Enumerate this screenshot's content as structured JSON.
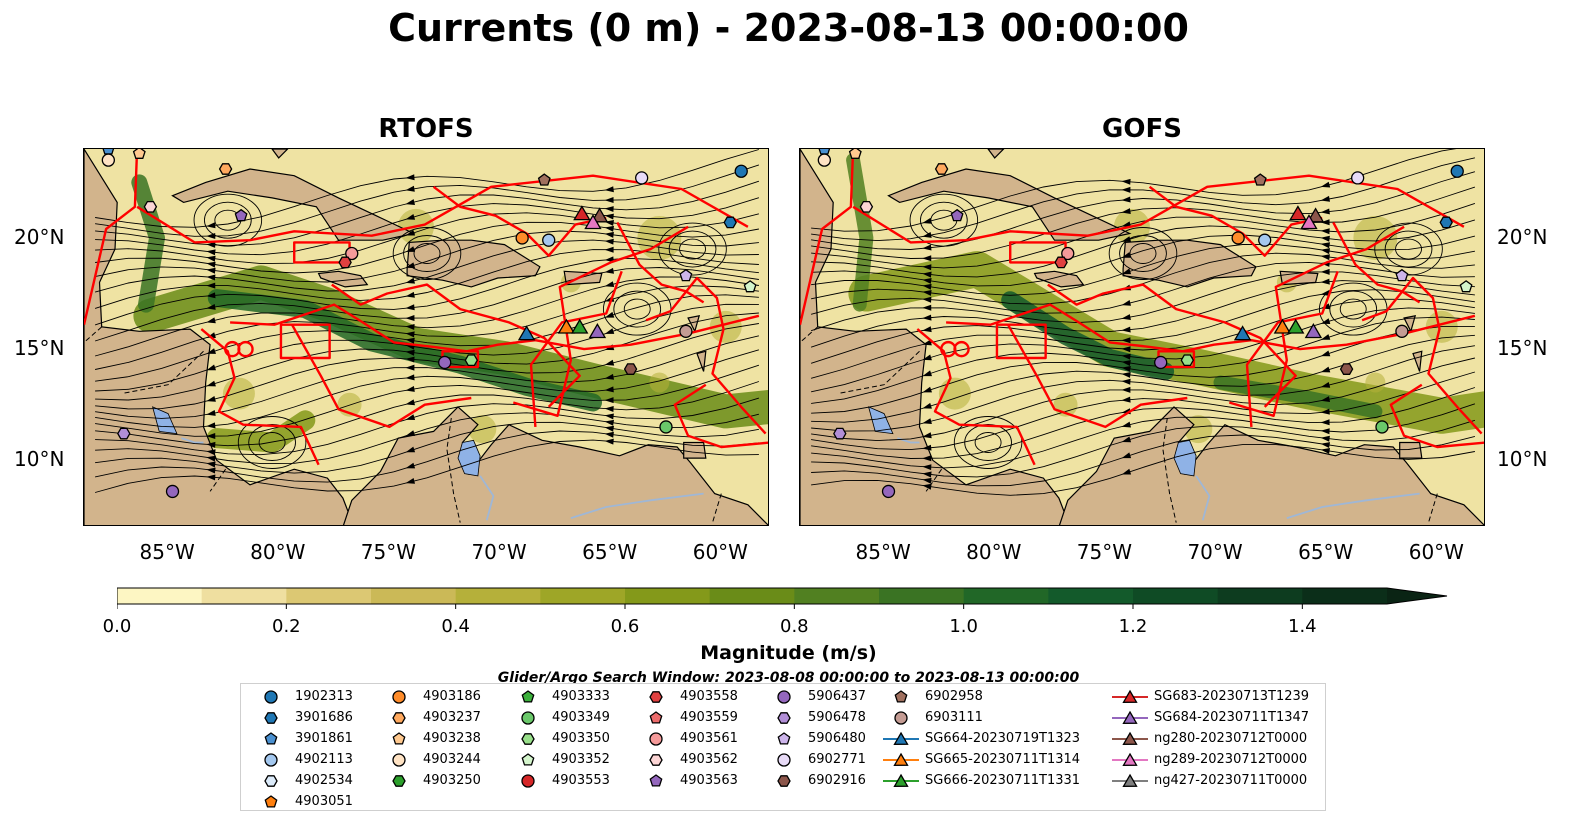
{
  "title": "Currents (0 m) - 2023-08-13 00:00:00",
  "panels": [
    {
      "title": "RTOFS"
    },
    {
      "title": "GOFS"
    }
  ],
  "map": {
    "lon_ticks": [
      "85°W",
      "80°W",
      "75°W",
      "70°W",
      "65°W",
      "60°W"
    ],
    "lat_ticks": [
      "20°N",
      "15°N",
      "10°N"
    ],
    "lon_range": [
      -89,
      -58
    ],
    "lat_range": [
      7,
      24
    ],
    "land_color": "#d2b48c",
    "lake_color": "#8fb2e6",
    "eez_color": "#ff0000"
  },
  "colorbar": {
    "title": "Magnitude (m/s)",
    "tick_labels": [
      "0.0",
      "0.2",
      "0.4",
      "0.6",
      "0.8",
      "1.0",
      "1.2",
      "1.4"
    ],
    "colors": [
      "#fdf6c3",
      "#efdfa0",
      "#dcc873",
      "#cbb957",
      "#b5b03a",
      "#9ea627",
      "#84991a",
      "#6a8c18",
      "#518021",
      "#3a7323",
      "#216727",
      "#135a2b",
      "#0f4b25",
      "#0d3c1f",
      "#0b2e19",
      "#0a2414"
    ],
    "extend": "max"
  },
  "search_window": "Glider/Argo Search Window: 2023-08-08 00:00:00 to 2023-08-13 00:00:00",
  "legend": {
    "columns": [
      [
        {
          "label": "1902313",
          "marker": "circle",
          "color": "#1f77b4"
        },
        {
          "label": "3901686",
          "marker": "hexagon",
          "color": "#1f77b4"
        },
        {
          "label": "3901861",
          "marker": "pentagon",
          "color": "#4a90d0"
        },
        {
          "label": "4902113",
          "marker": "circle",
          "color": "#a4c8ef"
        },
        {
          "label": "4902534",
          "marker": "hexagon",
          "color": "#dcebfa"
        },
        {
          "label": "4903051",
          "marker": "pentagon",
          "color": "#ff7f0e"
        }
      ],
      [
        {
          "label": "4903186",
          "marker": "circle",
          "color": "#ff8c2a"
        },
        {
          "label": "4903237",
          "marker": "hexagon",
          "color": "#ffa95e"
        },
        {
          "label": "4903238",
          "marker": "pentagon",
          "color": "#ffc98f"
        },
        {
          "label": "4903244",
          "marker": "circle",
          "color": "#ffe3c4"
        },
        {
          "label": "4903250",
          "marker": "hexagon",
          "color": "#2ca02c"
        }
      ],
      [
        {
          "label": "4903333",
          "marker": "pentagon",
          "color": "#3cb03c"
        },
        {
          "label": "4903349",
          "marker": "circle",
          "color": "#6ac86a"
        },
        {
          "label": "4903350",
          "marker": "hexagon",
          "color": "#98df8a"
        },
        {
          "label": "4903352",
          "marker": "pentagon",
          "color": "#d4f5cc"
        },
        {
          "label": "4903553",
          "marker": "circle",
          "color": "#d62728"
        }
      ],
      [
        {
          "label": "4903558",
          "marker": "hexagon",
          "color": "#e04040"
        },
        {
          "label": "4903559",
          "marker": "pentagon",
          "color": "#ec6b6b"
        },
        {
          "label": "4903561",
          "marker": "circle",
          "color": "#f59a9a"
        },
        {
          "label": "4903562",
          "marker": "hexagon",
          "color": "#fcd5d5"
        },
        {
          "label": "4903563",
          "marker": "pentagon",
          "color": "#9467bd"
        }
      ],
      [
        {
          "label": "5906437",
          "marker": "circle",
          "color": "#9467bd"
        },
        {
          "label": "5906478",
          "marker": "hexagon",
          "color": "#b18ed6"
        },
        {
          "label": "5906480",
          "marker": "pentagon",
          "color": "#cdb5eb"
        },
        {
          "label": "6902771",
          "marker": "circle",
          "color": "#e8dbf7"
        },
        {
          "label": "6902916",
          "marker": "hexagon",
          "color": "#8c564b"
        }
      ],
      [
        {
          "label": "6902958",
          "marker": "pentagon",
          "color": "#a0705f"
        },
        {
          "label": "6903111",
          "marker": "circle",
          "color": "#c49c94"
        },
        {
          "label": "SG664-20230719T1323",
          "marker": "triangle",
          "color": "#1f77b4",
          "line": true
        },
        {
          "label": "SG665-20230711T1314",
          "marker": "triangle",
          "color": "#ff7f0e",
          "line": true
        },
        {
          "label": "SG666-20230711T1331",
          "marker": "triangle",
          "color": "#2ca02c",
          "line": true
        }
      ],
      [
        {
          "label": "SG683-20230713T1239",
          "marker": "triangle",
          "color": "#d62728",
          "line": true
        },
        {
          "label": "SG684-20230711T1347",
          "marker": "triangle",
          "color": "#9467bd",
          "line": true
        },
        {
          "label": "ng280-20230712T0000",
          "marker": "triangle",
          "color": "#8c564b",
          "line": true
        },
        {
          "label": "ng289-20230712T0000",
          "marker": "triangle",
          "color": "#e377c2",
          "line": true
        },
        {
          "label": "ng427-20230711T0000",
          "marker": "triangle",
          "color": "#7f7f7f",
          "line": true
        }
      ]
    ]
  },
  "floats": [
    {
      "id": "1902313",
      "lon": -59.3,
      "lat": 23.0
    },
    {
      "id": "3901686",
      "lon": -59.8,
      "lat": 20.7
    },
    {
      "id": "3901861",
      "lon": -87.9,
      "lat": 24.0
    },
    {
      "id": "4903349",
      "lon": -62.7,
      "lat": 11.5
    },
    {
      "id": "4903350",
      "lon": -71.5,
      "lat": 14.5
    },
    {
      "id": "4903352",
      "lon": -58.9,
      "lat": 17.8
    },
    {
      "id": "4903562",
      "lon": -86.0,
      "lat": 21.4
    },
    {
      "id": "4903563",
      "lon": -81.9,
      "lat": 21.0
    },
    {
      "id": "5906437",
      "lon": -72.7,
      "lat": 14.4
    },
    {
      "id": "5906478",
      "lon": -87.2,
      "lat": 11.2
    },
    {
      "id": "5906480",
      "lon": -61.8,
      "lat": 18.3
    },
    {
      "id": "6902771",
      "lon": -63.8,
      "lat": 22.7
    },
    {
      "id": "6902916",
      "lon": -64.3,
      "lat": 14.1
    },
    {
      "id": "6902958",
      "lon": -68.2,
      "lat": 22.6
    },
    {
      "id": "6903111",
      "lon": -61.8,
      "lat": 15.8
    },
    {
      "id": "4903561",
      "lon": -76.9,
      "lat": 19.3
    },
    {
      "id": "4902113",
      "lon": -68.0,
      "lat": 19.9
    },
    {
      "id": "4903186",
      "lon": -69.2,
      "lat": 20.0
    },
    {
      "id": "4903244",
      "lon": -87.9,
      "lat": 23.5
    },
    {
      "id": "4903558",
      "lon": -77.2,
      "lat": 18.9
    },
    {
      "id": "4903237",
      "lon": -82.6,
      "lat": 23.1
    },
    {
      "id": "4903238",
      "lon": -86.5,
      "lat": 23.8
    },
    {
      "id": "5906437b",
      "lon": -85.0,
      "lat": 8.6
    }
  ],
  "gliders": [
    {
      "id": "SG664",
      "lon": -69.0,
      "lat": 15.7
    },
    {
      "id": "SG665",
      "lon": -67.2,
      "lat": 16.0
    },
    {
      "id": "SG666",
      "lon": -66.6,
      "lat": 16.0
    },
    {
      "id": "SG684",
      "lon": -65.8,
      "lat": 15.8
    },
    {
      "id": "SG683",
      "lon": -66.5,
      "lat": 21.1
    },
    {
      "id": "ng280",
      "lon": -65.7,
      "lat": 21.0
    },
    {
      "id": "ng289",
      "lon": -66.0,
      "lat": 20.7
    }
  ]
}
